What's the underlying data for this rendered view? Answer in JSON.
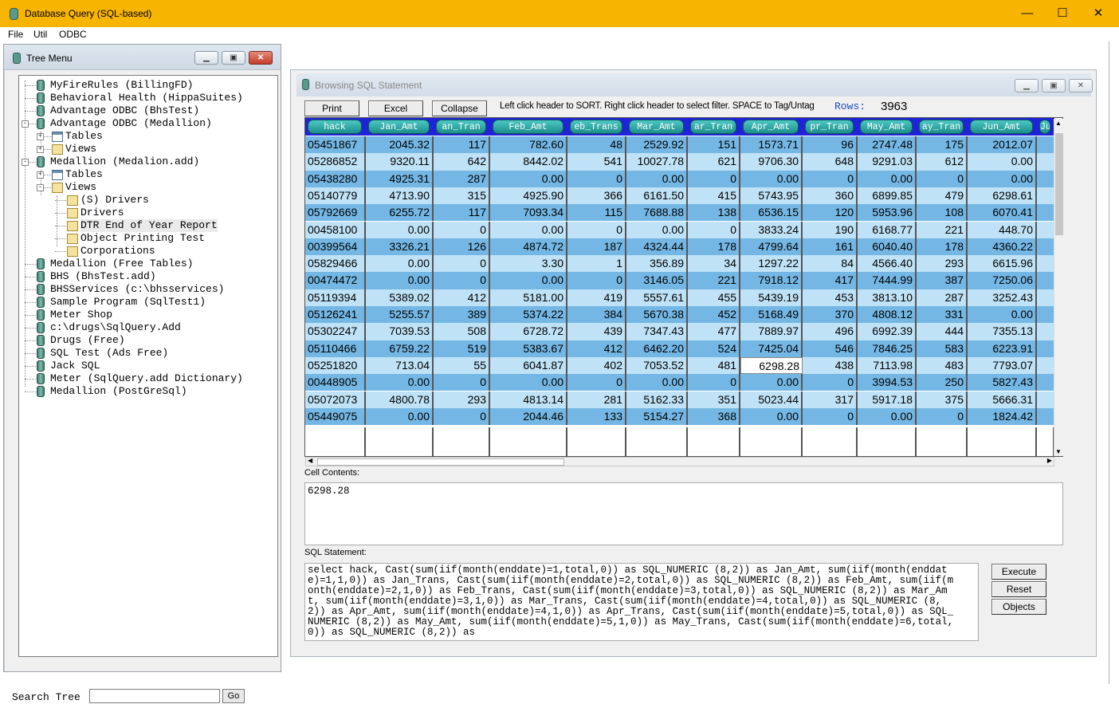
{
  "app": {
    "title": "Database Query (SQL-based)"
  },
  "window_controls": {
    "minimize": "—",
    "maximize": "☐",
    "close": "✕"
  },
  "menu": [
    "File",
    "Util",
    "ODBC"
  ],
  "tree_window": {
    "title": "Tree Menu",
    "items": [
      "MyFireRules (BillingFD)",
      "Behavioral Health (HippaSuites)",
      "Advantage ODBC (BhsTest)",
      "Advantage ODBC (Medallion)",
      "Tables",
      "Views",
      "Medallion (Medalion.add)",
      "Tables",
      "Views",
      "(S) Drivers",
      "Drivers",
      "DTR End of Year Report",
      "Object Printing Test",
      "Corporations",
      "Medallion (Free Tables)",
      "BHS (BhsTest.add)",
      "BHSServices (c:\\bhsservices)",
      "Sample Program (SqlTest1)",
      "Meter Shop",
      "c:\\drugs\\SqlQuery.Add",
      "Drugs (Free)",
      "SQL Test (Ads Free)",
      "Jack SQL",
      "Meter (SqlQuery.add Dictionary)",
      "Medallion (PostGreSql)"
    ]
  },
  "search": {
    "label": "Search Tree",
    "value": "",
    "go_label": "Go"
  },
  "browse_window": {
    "title": "Browsing SQL Statement",
    "toolbar": {
      "print": "Print",
      "excel": "Excel",
      "collapse": "Collapse"
    },
    "hint": "Left click header to SORT.  Right click header to select filter. SPACE to Tag/Untag",
    "rows_label": "Rows:",
    "rows_value": "3963"
  },
  "grid": {
    "headers": [
      "hack",
      "Jan_Amt",
      "an_Tran",
      "Feb_Amt",
      "eb_Trans",
      "Mar_Amt",
      "ar_Tran",
      "Apr_Amt",
      "pr_Tran",
      "May_Amt",
      "ay_Tran",
      "Jun_Amt",
      "Ju"
    ],
    "rows": [
      [
        "05451867",
        "2045.32",
        "117",
        "782.60",
        "48",
        "2529.92",
        "151",
        "1573.71",
        "96",
        "2747.48",
        "175",
        "2012.07"
      ],
      [
        "05286852",
        "9320.11",
        "642",
        "8442.02",
        "541",
        "10027.78",
        "621",
        "9706.30",
        "648",
        "9291.03",
        "612",
        "0.00"
      ],
      [
        "05438280",
        "4925.31",
        "287",
        "0.00",
        "0",
        "0.00",
        "0",
        "0.00",
        "0",
        "0.00",
        "0",
        "0.00"
      ],
      [
        "05140779",
        "4713.90",
        "315",
        "4925.90",
        "366",
        "6161.50",
        "415",
        "5743.95",
        "360",
        "6899.85",
        "479",
        "6298.61"
      ],
      [
        "05792669",
        "6255.72",
        "117",
        "7093.34",
        "115",
        "7688.88",
        "138",
        "6536.15",
        "120",
        "5953.96",
        "108",
        "6070.41"
      ],
      [
        "00458100",
        "0.00",
        "0",
        "0.00",
        "0",
        "0.00",
        "0",
        "3833.24",
        "190",
        "6168.77",
        "221",
        "448.70"
      ],
      [
        "00399564",
        "3326.21",
        "126",
        "4874.72",
        "187",
        "4324.44",
        "178",
        "4799.64",
        "161",
        "6040.40",
        "178",
        "4360.22"
      ],
      [
        "05829466",
        "0.00",
        "0",
        "3.30",
        "1",
        "356.89",
        "34",
        "1297.22",
        "84",
        "4566.40",
        "293",
        "6615.96"
      ],
      [
        "00474472",
        "0.00",
        "0",
        "0.00",
        "0",
        "3146.05",
        "221",
        "7918.12",
        "417",
        "7444.99",
        "387",
        "7250.06"
      ],
      [
        "05119394",
        "5389.02",
        "412",
        "5181.00",
        "419",
        "5557.61",
        "455",
        "5439.19",
        "453",
        "3813.10",
        "287",
        "3252.43"
      ],
      [
        "05126241",
        "5255.57",
        "389",
        "5374.22",
        "384",
        "5670.38",
        "452",
        "5168.49",
        "370",
        "4808.12",
        "331",
        "0.00"
      ],
      [
        "05302247",
        "7039.53",
        "508",
        "6728.72",
        "439",
        "7347.43",
        "477",
        "7889.97",
        "496",
        "6992.39",
        "444",
        "7355.13"
      ],
      [
        "05110466",
        "6759.22",
        "519",
        "5383.67",
        "412",
        "6462.20",
        "524",
        "7425.04",
        "546",
        "7846.25",
        "583",
        "6223.91"
      ],
      [
        "05251820",
        "713.04",
        "55",
        "6041.87",
        "402",
        "7053.52",
        "481",
        "6298.28",
        "438",
        "7113.98",
        "483",
        "7793.07"
      ],
      [
        "00448905",
        "0.00",
        "0",
        "0.00",
        "0",
        "0.00",
        "0",
        "0.00",
        "0",
        "3994.53",
        "250",
        "5827.43"
      ],
      [
        "05072073",
        "4800.78",
        "293",
        "4813.14",
        "281",
        "5162.33",
        "351",
        "5023.44",
        "317",
        "5917.18",
        "375",
        "5666.31"
      ],
      [
        "05449075",
        "0.00",
        "0",
        "2044.46",
        "133",
        "5154.27",
        "368",
        "0.00",
        "0",
        "0.00",
        "0",
        "1824.42"
      ]
    ]
  },
  "cell_contents": {
    "label": "Cell Contents:",
    "value": "6298.28"
  },
  "sql": {
    "label": "SQL Statement:",
    "value": "select hack,  Cast(sum(iif(month(enddate)=1,total,0)) as SQL_NUMERIC (8,2)) as Jan_Amt,  sum(iif(month(enddate)=1,1,0)) as Jan_Trans,  Cast(sum(iif(month(enddate)=2,total,0)) as SQL_NUMERIC (8,2)) as Feb_Amt,  sum(iif(month(enddate)=2,1,0)) as Feb_Trans,  Cast(sum(iif(month(enddate)=3,total,0)) as SQL_NUMERIC (8,2)) as Mar_Amt,  sum(iif(month(enddate)=3,1,0)) as Mar_Trans,  Cast(sum(iif(month(enddate)=4,total,0)) as SQL_NUMERIC (8,2)) as Apr_Amt,  sum(iif(month(enddate)=4,1,0)) as Apr_Trans,  Cast(sum(iif(month(enddate)=5,total,0)) as SQL_NUMERIC (8,2)) as May_Amt,  sum(iif(month(enddate)=5,1,0)) as May_Trans,  Cast(sum(iif(month(enddate)=6,total,0)) as SQL_NUMERIC (8,2)) as",
    "buttons": {
      "execute": "Execute",
      "reset": "Reset",
      "objects": "Objects"
    }
  }
}
